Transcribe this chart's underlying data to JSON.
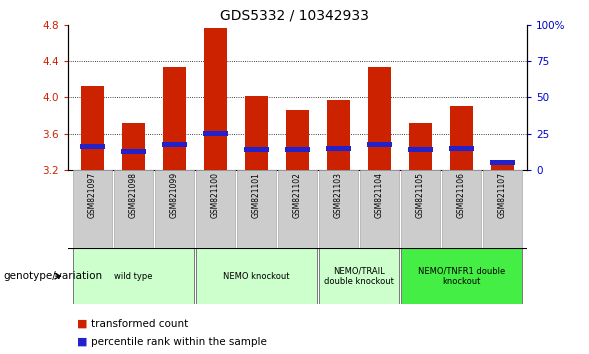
{
  "title": "GDS5332 / 10342933",
  "samples": [
    "GSM821097",
    "GSM821098",
    "GSM821099",
    "GSM821100",
    "GSM821101",
    "GSM821102",
    "GSM821103",
    "GSM821104",
    "GSM821105",
    "GSM821106",
    "GSM821107"
  ],
  "red_values": [
    4.12,
    3.72,
    4.33,
    4.76,
    4.01,
    3.86,
    3.97,
    4.33,
    3.72,
    3.91,
    3.27
  ],
  "blue_values": [
    3.46,
    3.4,
    3.48,
    3.6,
    3.43,
    3.42,
    3.44,
    3.48,
    3.42,
    3.44,
    3.28
  ],
  "ylim_left": [
    3.2,
    4.8
  ],
  "ylim_right": [
    0,
    100
  ],
  "yticks_left": [
    3.2,
    3.6,
    4.0,
    4.4,
    4.8
  ],
  "yticks_right": [
    0,
    25,
    50,
    75,
    100
  ],
  "ytick_labels_right": [
    "0",
    "25",
    "50",
    "75",
    "100%"
  ],
  "group_ranges": [
    {
      "start": 0,
      "end": 2,
      "label": "wild type",
      "color": "#ccffcc"
    },
    {
      "start": 3,
      "end": 5,
      "label": "NEMO knockout",
      "color": "#ccffcc"
    },
    {
      "start": 6,
      "end": 7,
      "label": "NEMO/TRAIL\ndouble knockout",
      "color": "#ccffcc"
    },
    {
      "start": 8,
      "end": 10,
      "label": "NEMO/TNFR1 double\nknockout",
      "color": "#44ee44"
    }
  ],
  "bar_width": 0.55,
  "blue_bar_height": 0.055,
  "left_label_color": "#cc2200",
  "right_label_color": "#0000cc",
  "genotype_label": "genotype/variation",
  "grid_lines": [
    3.6,
    4.0,
    4.4
  ],
  "legend_items": [
    {
      "label": "transformed count",
      "color": "#cc2200"
    },
    {
      "label": "percentile rank within the sample",
      "color": "#0000cc"
    }
  ]
}
